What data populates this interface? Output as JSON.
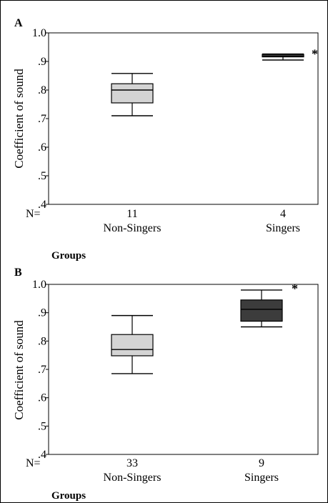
{
  "chart_data": [
    {
      "type": "box",
      "panel_label": "A",
      "ylabel": "Coefficient of sound",
      "xlabel": "Groups",
      "ylim": [
        0.4,
        1.0
      ],
      "y_ticks": [
        ".4",
        ".5",
        ".6",
        ".7",
        ".8",
        ".9",
        "1.0"
      ],
      "n_label": "N=",
      "grid": false,
      "categories": [
        {
          "name": "Non-Singers",
          "n": "11",
          "min": 0.71,
          "q1": 0.755,
          "median": 0.8,
          "q3": 0.822,
          "max": 0.858,
          "fill": "#d4d4d4"
        },
        {
          "name": "Singers",
          "n": "4",
          "min": 0.905,
          "q1": 0.916,
          "median": 0.918,
          "q3": 0.925,
          "max": 0.926,
          "fill": "#3c3c3c"
        }
      ],
      "annotation": "*"
    },
    {
      "type": "box",
      "panel_label": "B",
      "ylabel": "Coefficient of sound",
      "xlabel": "Groups",
      "ylim": [
        0.4,
        1.0
      ],
      "y_ticks": [
        ".4",
        ".5",
        ".6",
        ".7",
        ".8",
        ".9",
        "1.0"
      ],
      "n_label": "N=",
      "grid": false,
      "categories": [
        {
          "name": "Non-Singers",
          "n": "33",
          "min": 0.685,
          "q1": 0.748,
          "median": 0.77,
          "q3": 0.823,
          "max": 0.89,
          "fill": "#d4d4d4"
        },
        {
          "name": "Singers",
          "n": "9",
          "min": 0.85,
          "q1": 0.87,
          "median": 0.912,
          "q3": 0.945,
          "max": 0.98,
          "fill": "#3c3c3c"
        }
      ],
      "annotation": "*"
    }
  ]
}
